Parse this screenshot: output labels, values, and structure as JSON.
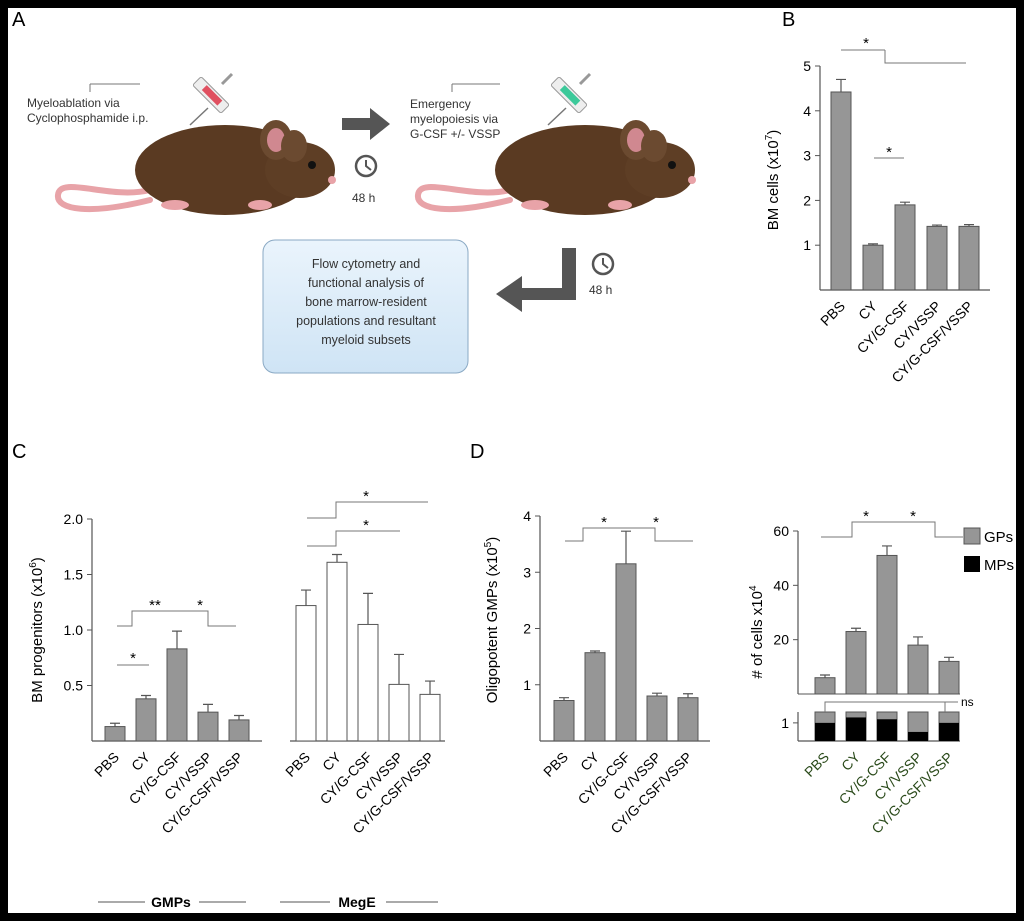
{
  "panels": {
    "A": {
      "letter": "A",
      "step1_line1": "Myeloablation via",
      "step1_line2": "Cyclophosphamide i.p.",
      "step2_line1": "Emergency",
      "step2_line2": "myelopoiesis via",
      "step2_line3": "G-CSF +/- VSSP",
      "time1": "48 h",
      "time2": "48 h",
      "box_lines": [
        "Flow cytometry and",
        "functional analysis of",
        "bone marrow-resident",
        "populations and resultant",
        "myeloid subsets"
      ]
    },
    "B": {
      "letter": "B"
    },
    "C": {
      "letter": "C",
      "group1_label": "GMPs",
      "group2_label": "MegE"
    },
    "D": {
      "letter": "D"
    }
  },
  "colors": {
    "gray_bar": "#969696",
    "white_bar": "#ffffff",
    "black_bar": "#000000",
    "stroke": "#555555",
    "accent_label": "#2a4a1a"
  },
  "chart_data": [
    {
      "id": "B",
      "type": "bar",
      "ylabel": "BM cells (x10^7)",
      "ylim": [
        0,
        5
      ],
      "yticks": [
        1,
        2,
        3,
        4,
        5
      ],
      "categories": [
        "PBS",
        "CY",
        "CY/G-CSF",
        "CY/VSSP",
        "CY/G-CSF/VSSP"
      ],
      "values": [
        4.42,
        1.0,
        1.9,
        1.42,
        1.42
      ],
      "errors": [
        0.28,
        0.03,
        0.06,
        0.03,
        0.04
      ],
      "annotations": [
        "*",
        "*"
      ]
    },
    {
      "id": "C",
      "type": "bar",
      "ylabel": "BM progenitors (x10^6)",
      "ylim": [
        0,
        2.0
      ],
      "yticks": [
        "0.5",
        "1.0",
        "1.5",
        "2.0"
      ],
      "categories": [
        "PBS",
        "CY",
        "CY/G-CSF",
        "CY/VSSP",
        "CY/G-CSF/VSSP"
      ],
      "series": [
        {
          "name": "GMPs",
          "values": [
            0.13,
            0.38,
            0.83,
            0.26,
            0.19
          ],
          "errors": [
            0.03,
            0.03,
            0.16,
            0.07,
            0.04
          ]
        },
        {
          "name": "MegE",
          "values": [
            1.22,
            1.61,
            1.05,
            0.51,
            0.42
          ],
          "errors": [
            0.14,
            0.07,
            0.28,
            0.27,
            0.12
          ]
        }
      ],
      "annotations": [
        "*",
        "**",
        "*",
        "*",
        "*"
      ]
    },
    {
      "id": "D-left",
      "type": "bar",
      "ylabel": "Oligopotent GMPs (x10^5)",
      "ylim": [
        0,
        4
      ],
      "yticks": [
        1,
        2,
        3,
        4
      ],
      "categories": [
        "PBS",
        "CY",
        "CY/G-CSF",
        "CY/VSSP",
        "CY/G-CSF/VSSP"
      ],
      "values": [
        0.72,
        1.57,
        3.15,
        0.8,
        0.77
      ],
      "errors": [
        0.05,
        0.03,
        0.58,
        0.05,
        0.07
      ],
      "annotations": [
        "*",
        "*"
      ]
    },
    {
      "id": "D-right",
      "type": "bar",
      "ylabel": "# of cells x10^4",
      "yticks_upper": [
        20,
        40,
        60
      ],
      "ytick_lower": "1",
      "categories": [
        "PBS",
        "CY",
        "CY/G-CSF",
        "CY/VSSP",
        "CY/G-CSF/VSSP"
      ],
      "series": [
        {
          "name": "GPs",
          "values": [
            6,
            23,
            51,
            18,
            12
          ],
          "errors": [
            1.0,
            1.2,
            3.5,
            3.0,
            1.5
          ]
        },
        {
          "name": "MPs",
          "values": [
            1.0,
            1.3,
            1.2,
            0.5,
            1.0
          ]
        }
      ],
      "annotations": [
        "*",
        "*",
        "ns"
      ],
      "legend": "right"
    }
  ]
}
